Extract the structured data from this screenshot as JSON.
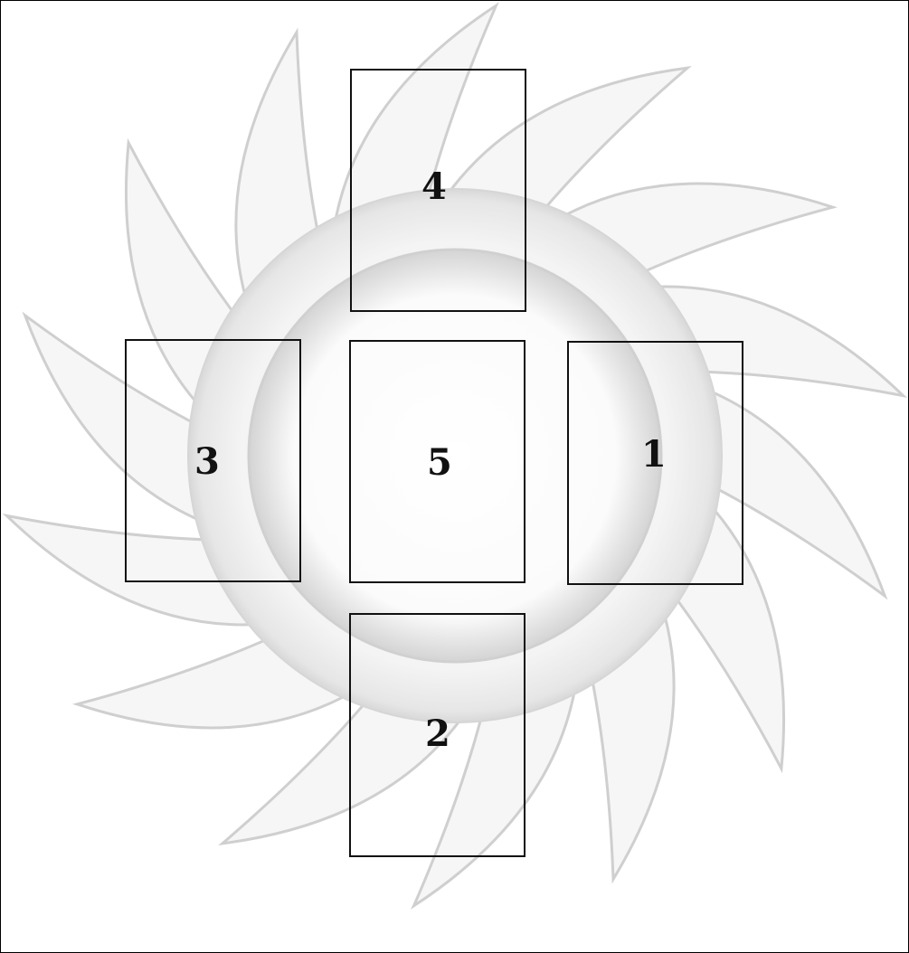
{
  "colors": {
    "background": "#ffffff",
    "card_border": "#111111",
    "sun_fill": "#f6f6f6",
    "sun_edge": "#cfcfcf"
  },
  "spread": {
    "cards": [
      {
        "id": "card-4",
        "number": "4"
      },
      {
        "id": "card-3",
        "number": "3"
      },
      {
        "id": "card-5",
        "number": "5"
      },
      {
        "id": "card-1",
        "number": "1"
      },
      {
        "id": "card-2",
        "number": "2"
      }
    ]
  },
  "background_art": {
    "icon": "sun-icon"
  }
}
